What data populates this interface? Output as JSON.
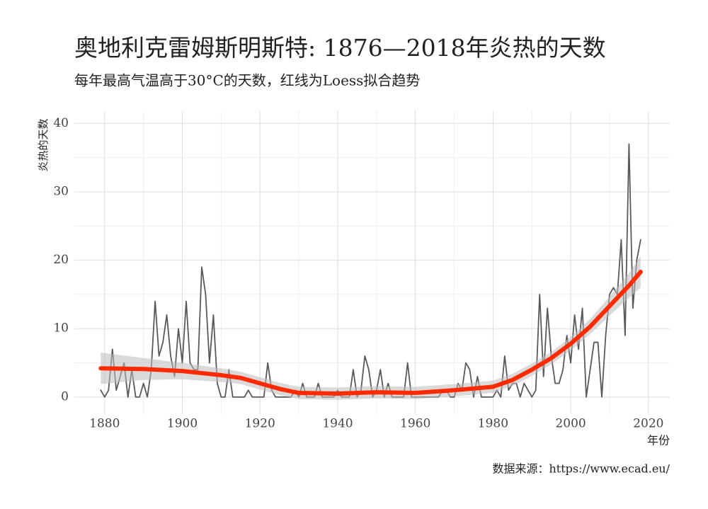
{
  "chart_data": {
    "type": "line",
    "title": "奥地利克雷姆斯明斯特: 1876—2018年炎热的天数",
    "subtitle": "每年最高气温高于30°C的天数，红线为Loess拟合趋势",
    "y_label": "炎热的天数",
    "x_label": "年份",
    "caption": "数据来源：https://www.ecad.eu/",
    "xlim": [
      1872.2,
      2025.5
    ],
    "ylim": [
      -2.5,
      41.8
    ],
    "xticks": [
      1880,
      1900,
      1920,
      1940,
      1960,
      1980,
      2000,
      2020
    ],
    "yticks": [
      0,
      10,
      20,
      30,
      40
    ],
    "grid": true,
    "series": [
      {
        "color": "#595959",
        "x": [
          1879,
          1880,
          1881,
          1882,
          1883,
          1884,
          1885,
          1886,
          1887,
          1888,
          1889,
          1890,
          1891,
          1892,
          1893,
          1894,
          1895,
          1896,
          1897,
          1898,
          1899,
          1900,
          1901,
          1902,
          1903,
          1904,
          1905,
          1906,
          1907,
          1908,
          1909,
          1910,
          1911,
          1912,
          1913,
          1914,
          1915,
          1916,
          1917,
          1918,
          1919,
          1920,
          1921,
          1922,
          1923,
          1924,
          1925,
          1926,
          1927,
          1928,
          1929,
          1930,
          1931,
          1932,
          1933,
          1934,
          1935,
          1936,
          1937,
          1938,
          1939,
          1940,
          1941,
          1942,
          1943,
          1944,
          1945,
          1946,
          1947,
          1948,
          1949,
          1950,
          1951,
          1952,
          1953,
          1954,
          1955,
          1956,
          1957,
          1958,
          1959,
          1960,
          1961,
          1962,
          1963,
          1964,
          1965,
          1966,
          1967,
          1968,
          1969,
          1970,
          1971,
          1972,
          1973,
          1974,
          1975,
          1976,
          1977,
          1978,
          1979,
          1980,
          1981,
          1982,
          1983,
          1984,
          1985,
          1986,
          1987,
          1988,
          1989,
          1990,
          1991,
          1992,
          1993,
          1994,
          1995,
          1996,
          1997,
          1998,
          1999,
          2000,
          2001,
          2002,
          2003,
          2004,
          2005,
          2006,
          2007,
          2008,
          2009,
          2010,
          2011,
          2012,
          2013,
          2014,
          2015,
          2016,
          2017,
          2018
        ],
        "values": [
          1,
          0,
          1,
          7,
          1,
          3,
          5,
          0,
          4,
          0,
          0,
          2,
          0,
          4,
          14,
          6,
          8,
          12,
          6,
          3,
          10,
          5,
          14,
          5,
          4,
          4,
          19,
          15,
          5,
          12,
          2,
          0,
          0,
          4,
          0,
          0,
          0,
          0,
          1,
          0,
          0,
          0,
          0,
          5,
          1,
          0,
          0,
          0,
          0,
          0,
          1,
          0,
          2,
          0,
          0,
          0,
          2,
          0,
          0,
          0,
          0,
          1,
          0,
          0,
          0,
          4,
          0,
          1,
          6,
          4,
          0,
          1,
          4,
          0,
          2,
          0,
          0,
          0,
          0,
          5,
          0,
          0,
          0,
          0,
          0,
          0,
          0,
          0,
          1,
          1,
          0,
          0,
          2,
          1,
          5,
          4,
          0,
          3,
          0,
          0,
          0,
          0,
          1,
          0,
          6,
          1,
          2,
          2,
          0,
          2,
          1,
          0,
          1,
          15,
          3,
          13,
          6,
          2,
          2,
          4,
          9,
          5,
          12,
          7,
          13,
          0,
          4,
          8,
          8,
          0,
          9,
          15,
          16,
          15,
          23,
          9,
          37,
          13,
          20,
          23
        ]
      },
      {
        "color": "#ff2a00",
        "x": [
          1879,
          1890,
          1900,
          1910,
          1915,
          1920,
          1925,
          1930,
          1940,
          1950,
          1960,
          1970,
          1980,
          1985,
          1990,
          1995,
          2000,
          2005,
          2010,
          2015,
          2018
        ],
        "values": [
          4.2,
          4.1,
          3.8,
          3.2,
          2.8,
          2.0,
          1.2,
          0.6,
          0.5,
          0.7,
          0.6,
          1.0,
          1.5,
          2.5,
          4.0,
          5.7,
          7.8,
          10.3,
          13.3,
          16.3,
          18.3
        ],
        "lower": [
          1.9,
          2.5,
          2.6,
          2.2,
          1.9,
          1.1,
          0.3,
          -0.3,
          -0.4,
          -0.2,
          -0.3,
          0.1,
          0.6,
          1.6,
          3.1,
          4.8,
          6.8,
          9.2,
          11.9,
          14.5,
          16.0
        ],
        "upper": [
          6.5,
          5.7,
          5.0,
          4.2,
          3.7,
          2.9,
          2.1,
          1.5,
          1.4,
          1.6,
          1.5,
          1.9,
          2.4,
          3.4,
          4.9,
          6.6,
          8.8,
          11.4,
          14.7,
          18.1,
          20.6
        ]
      }
    ]
  }
}
